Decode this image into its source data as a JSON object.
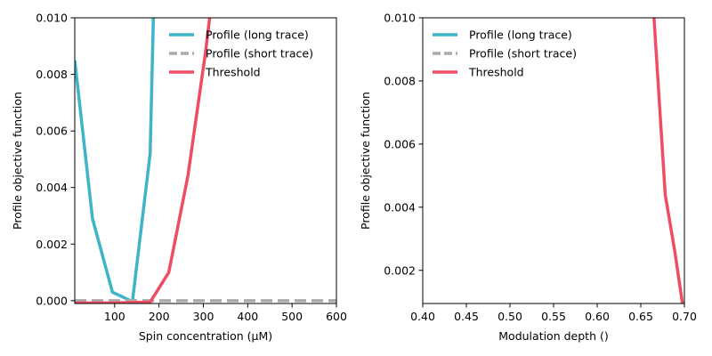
{
  "chart_data": [
    {
      "type": "line",
      "title": "",
      "xlabel": "Spin concentration (μM)",
      "ylabel": "Profile objective function",
      "xlim": [
        10,
        600
      ],
      "ylim": [
        -0.0001,
        0.01
      ],
      "xticks": [
        100,
        200,
        300,
        400,
        500,
        600
      ],
      "xtick_labels": [
        "100",
        "200",
        "300",
        "400",
        "500",
        "600"
      ],
      "yticks": [
        0.0,
        0.002,
        0.004,
        0.006,
        0.008,
        0.01
      ],
      "ytick_labels": [
        "0.000",
        "0.002",
        "0.004",
        "0.006",
        "0.008",
        "0.010"
      ],
      "grid": false,
      "legend": {
        "placement": "top-right"
      },
      "series": [
        {
          "name": "Profile (long trace)",
          "color": "#3db5c6",
          "style": "solid",
          "x": [
            10,
            50,
            95,
            140,
            180,
            188
          ],
          "y": [
            0.0085,
            0.0029,
            0.0003,
            -3e-05,
            0.0052,
            0.0105
          ]
        },
        {
          "name": "Profile (short trace)",
          "color": "#aaaaaa",
          "style": "dashed",
          "x": [
            10,
            600
          ],
          "y": [
            0.0,
            0.0
          ]
        },
        {
          "name": "Threshold",
          "color": "#ef4c66",
          "style": "solid",
          "x": [
            10,
            95,
            180,
            222,
            265,
            305,
            318
          ],
          "y": [
            -8e-05,
            -8e-05,
            -5e-05,
            0.001,
            0.0044,
            0.0088,
            0.0105
          ]
        }
      ]
    },
    {
      "type": "line",
      "title": "",
      "xlabel": "Modulation depth ()",
      "ylabel": "Profile objective function",
      "xlim": [
        0.4,
        0.7
      ],
      "ylim": [
        0.00095,
        0.01
      ],
      "xticks": [
        0.4,
        0.45,
        0.5,
        0.55,
        0.6,
        0.65,
        0.7
      ],
      "xtick_labels": [
        "0.40",
        "0.45",
        "0.50",
        "0.55",
        "0.60",
        "0.65",
        "0.70"
      ],
      "yticks": [
        0.002,
        0.004,
        0.006,
        0.008,
        0.01
      ],
      "ytick_labels": [
        "0.002",
        "0.004",
        "0.006",
        "0.008",
        "0.010"
      ],
      "grid": false,
      "legend": {
        "placement": "top-left"
      },
      "series": [
        {
          "name": "Profile (long trace)",
          "color": "#3db5c6",
          "style": "solid",
          "x": [],
          "y": []
        },
        {
          "name": "Profile (short trace)",
          "color": "#aaaaaa",
          "style": "dashed",
          "x": [],
          "y": []
        },
        {
          "name": "Threshold",
          "color": "#ef4c66",
          "style": "solid",
          "x": [
            0.664,
            0.678,
            0.689,
            0.698,
            0.71
          ],
          "y": [
            0.0105,
            0.0044,
            0.0026,
            0.0009,
            -0.001
          ]
        }
      ]
    }
  ]
}
